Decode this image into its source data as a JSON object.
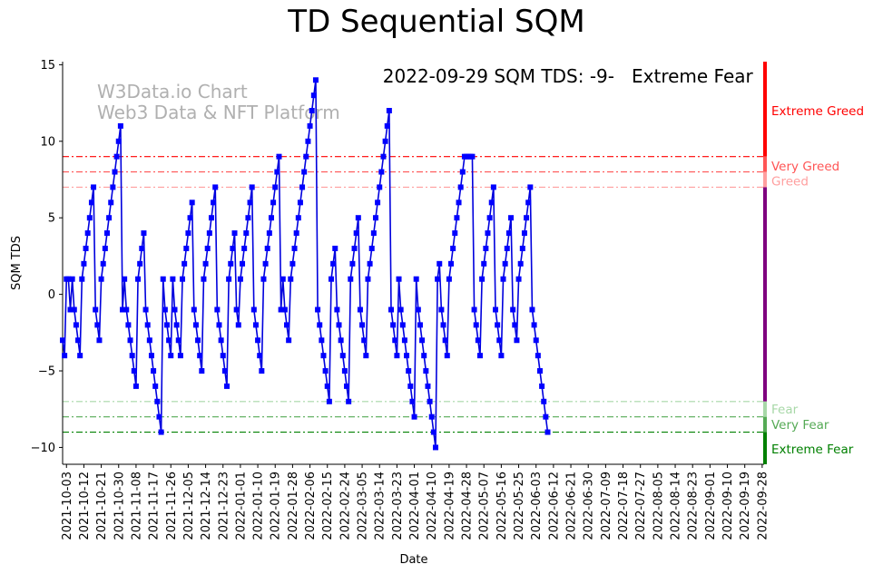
{
  "title": "TD Sequential SQM",
  "watermark": {
    "line1": "W3Data.io Chart",
    "line2": "Web3 Data & NFT Platform"
  },
  "headline": {
    "label": "2022-09-29 SQM TDS: -9-",
    "status": "Extreme Fear",
    "status_color": "#008000"
  },
  "colors": {
    "line": "#0000dd",
    "marker": "#0000ff",
    "extreme_greed": "#ff0000",
    "very_greed": "#ff5555",
    "greed": "#ff9f9f",
    "fear": "#a8d8a8",
    "very_fear": "#55aa55",
    "extreme_fear": "#008000",
    "mid_bar": "#7f007f"
  },
  "chart_data": {
    "type": "line",
    "title": "TD Sequential SQM",
    "xlabel": "Date",
    "ylabel": "SQM TDS",
    "xlim": [
      "2021-10-01",
      "2022-09-29"
    ],
    "ylim": [
      -11.1,
      15.2
    ],
    "yticks": [
      -10,
      -5,
      0,
      5,
      10,
      15
    ],
    "xticks": [
      "2021-10-03",
      "2021-10-12",
      "2021-10-21",
      "2021-10-30",
      "2021-11-08",
      "2021-11-17",
      "2021-11-26",
      "2021-12-05",
      "2021-12-14",
      "2021-12-23",
      "2022-01-01",
      "2022-01-10",
      "2022-01-19",
      "2022-01-28",
      "2022-02-06",
      "2022-02-15",
      "2022-02-24",
      "2022-03-05",
      "2022-03-14",
      "2022-03-23",
      "2022-04-01",
      "2022-04-10",
      "2022-04-19",
      "2022-04-28",
      "2022-05-07",
      "2022-05-16",
      "2022-05-25",
      "2022-06-03",
      "2022-06-12",
      "2022-06-21",
      "2022-06-30",
      "2022-07-09",
      "2022-07-18",
      "2022-07-27",
      "2022-08-05",
      "2022-08-14",
      "2022-08-23",
      "2022-09-01",
      "2022-09-10",
      "2022-09-19",
      "2022-09-28"
    ],
    "levels": [
      {
        "name": "Extreme Greed",
        "value": 9,
        "color": "#ff0000",
        "label_y": 12
      },
      {
        "name": "Very Greed",
        "value": 8,
        "color": "#ff5555",
        "label_y": 8.4
      },
      {
        "name": "Greed",
        "value": 7,
        "color": "#ff9f9f",
        "label_y": 7.4
      },
      {
        "name": "Fear",
        "value": -7,
        "color": "#a8d8a8",
        "label_y": -7.5
      },
      {
        "name": "Very Fear",
        "value": -8,
        "color": "#55aa55",
        "label_y": -8.5
      },
      {
        "name": "Extreme Fear",
        "value": -9,
        "color": "#008000",
        "label_y": -10.1
      }
    ],
    "series": [
      {
        "start_date": "2021-10-01",
        "values": [
          -3,
          -4,
          1,
          1,
          -1,
          1,
          -1,
          -2,
          -3,
          -4,
          1,
          2,
          3,
          4,
          5,
          6,
          7,
          -1,
          -2,
          -3,
          1,
          2,
          3,
          4,
          5,
          6,
          7,
          8,
          9,
          10,
          11,
          -1,
          1,
          -1,
          -2,
          -3,
          -4,
          -5,
          -6,
          1,
          2,
          3,
          4,
          -1,
          -2,
          -3,
          -4,
          -5,
          -6,
          -7,
          -8,
          -9,
          1,
          -1,
          -2,
          -3,
          -4,
          1,
          -1,
          -2,
          -3,
          -4,
          1,
          2,
          3,
          4,
          5,
          6,
          -1,
          -2,
          -3,
          -4,
          -5,
          1,
          2,
          3,
          4,
          5,
          6,
          7,
          -1,
          -2,
          -3,
          -4,
          -5,
          -6,
          1,
          2,
          3,
          4,
          -1,
          -2,
          1,
          2,
          3,
          4,
          5,
          6,
          7,
          -1,
          -2,
          -3,
          -4,
          -5,
          1,
          2,
          3,
          4,
          5,
          6,
          7,
          8,
          9,
          -1,
          1,
          -1,
          -2,
          -3,
          1,
          2,
          3,
          4,
          5,
          6,
          7,
          8,
          9,
          10,
          11,
          12,
          13,
          14,
          -1,
          -2,
          -3,
          -4,
          -5,
          -6,
          -7,
          1,
          2,
          3,
          -1,
          -2,
          -3,
          -4,
          -5,
          -6,
          -7,
          1,
          2,
          3,
          4,
          5,
          -1,
          -2,
          -3,
          -4,
          1,
          2,
          3,
          4,
          5,
          6,
          7,
          8,
          9,
          10,
          11,
          12,
          -1,
          -2,
          -3,
          -4,
          1,
          -1,
          -2,
          -3,
          -4,
          -5,
          -6,
          -7,
          -8,
          1,
          -1,
          -2,
          -3,
          -4,
          -5,
          -6,
          -7,
          -8,
          -9,
          -10,
          1,
          2,
          -1,
          -2,
          -3,
          -4,
          1,
          2,
          3,
          4,
          5,
          6,
          7,
          8,
          9,
          9,
          9,
          9,
          9,
          -1,
          -2,
          -3,
          -4,
          1,
          2,
          3,
          4,
          5,
          6,
          7,
          -1,
          -2,
          -3,
          -4,
          1,
          2,
          3,
          4,
          5,
          -1,
          -2,
          -3,
          1,
          2,
          3,
          4,
          5,
          6,
          7,
          -1,
          -2,
          -3,
          -4,
          -5,
          -6,
          -7,
          -8,
          -9
        ]
      }
    ]
  }
}
